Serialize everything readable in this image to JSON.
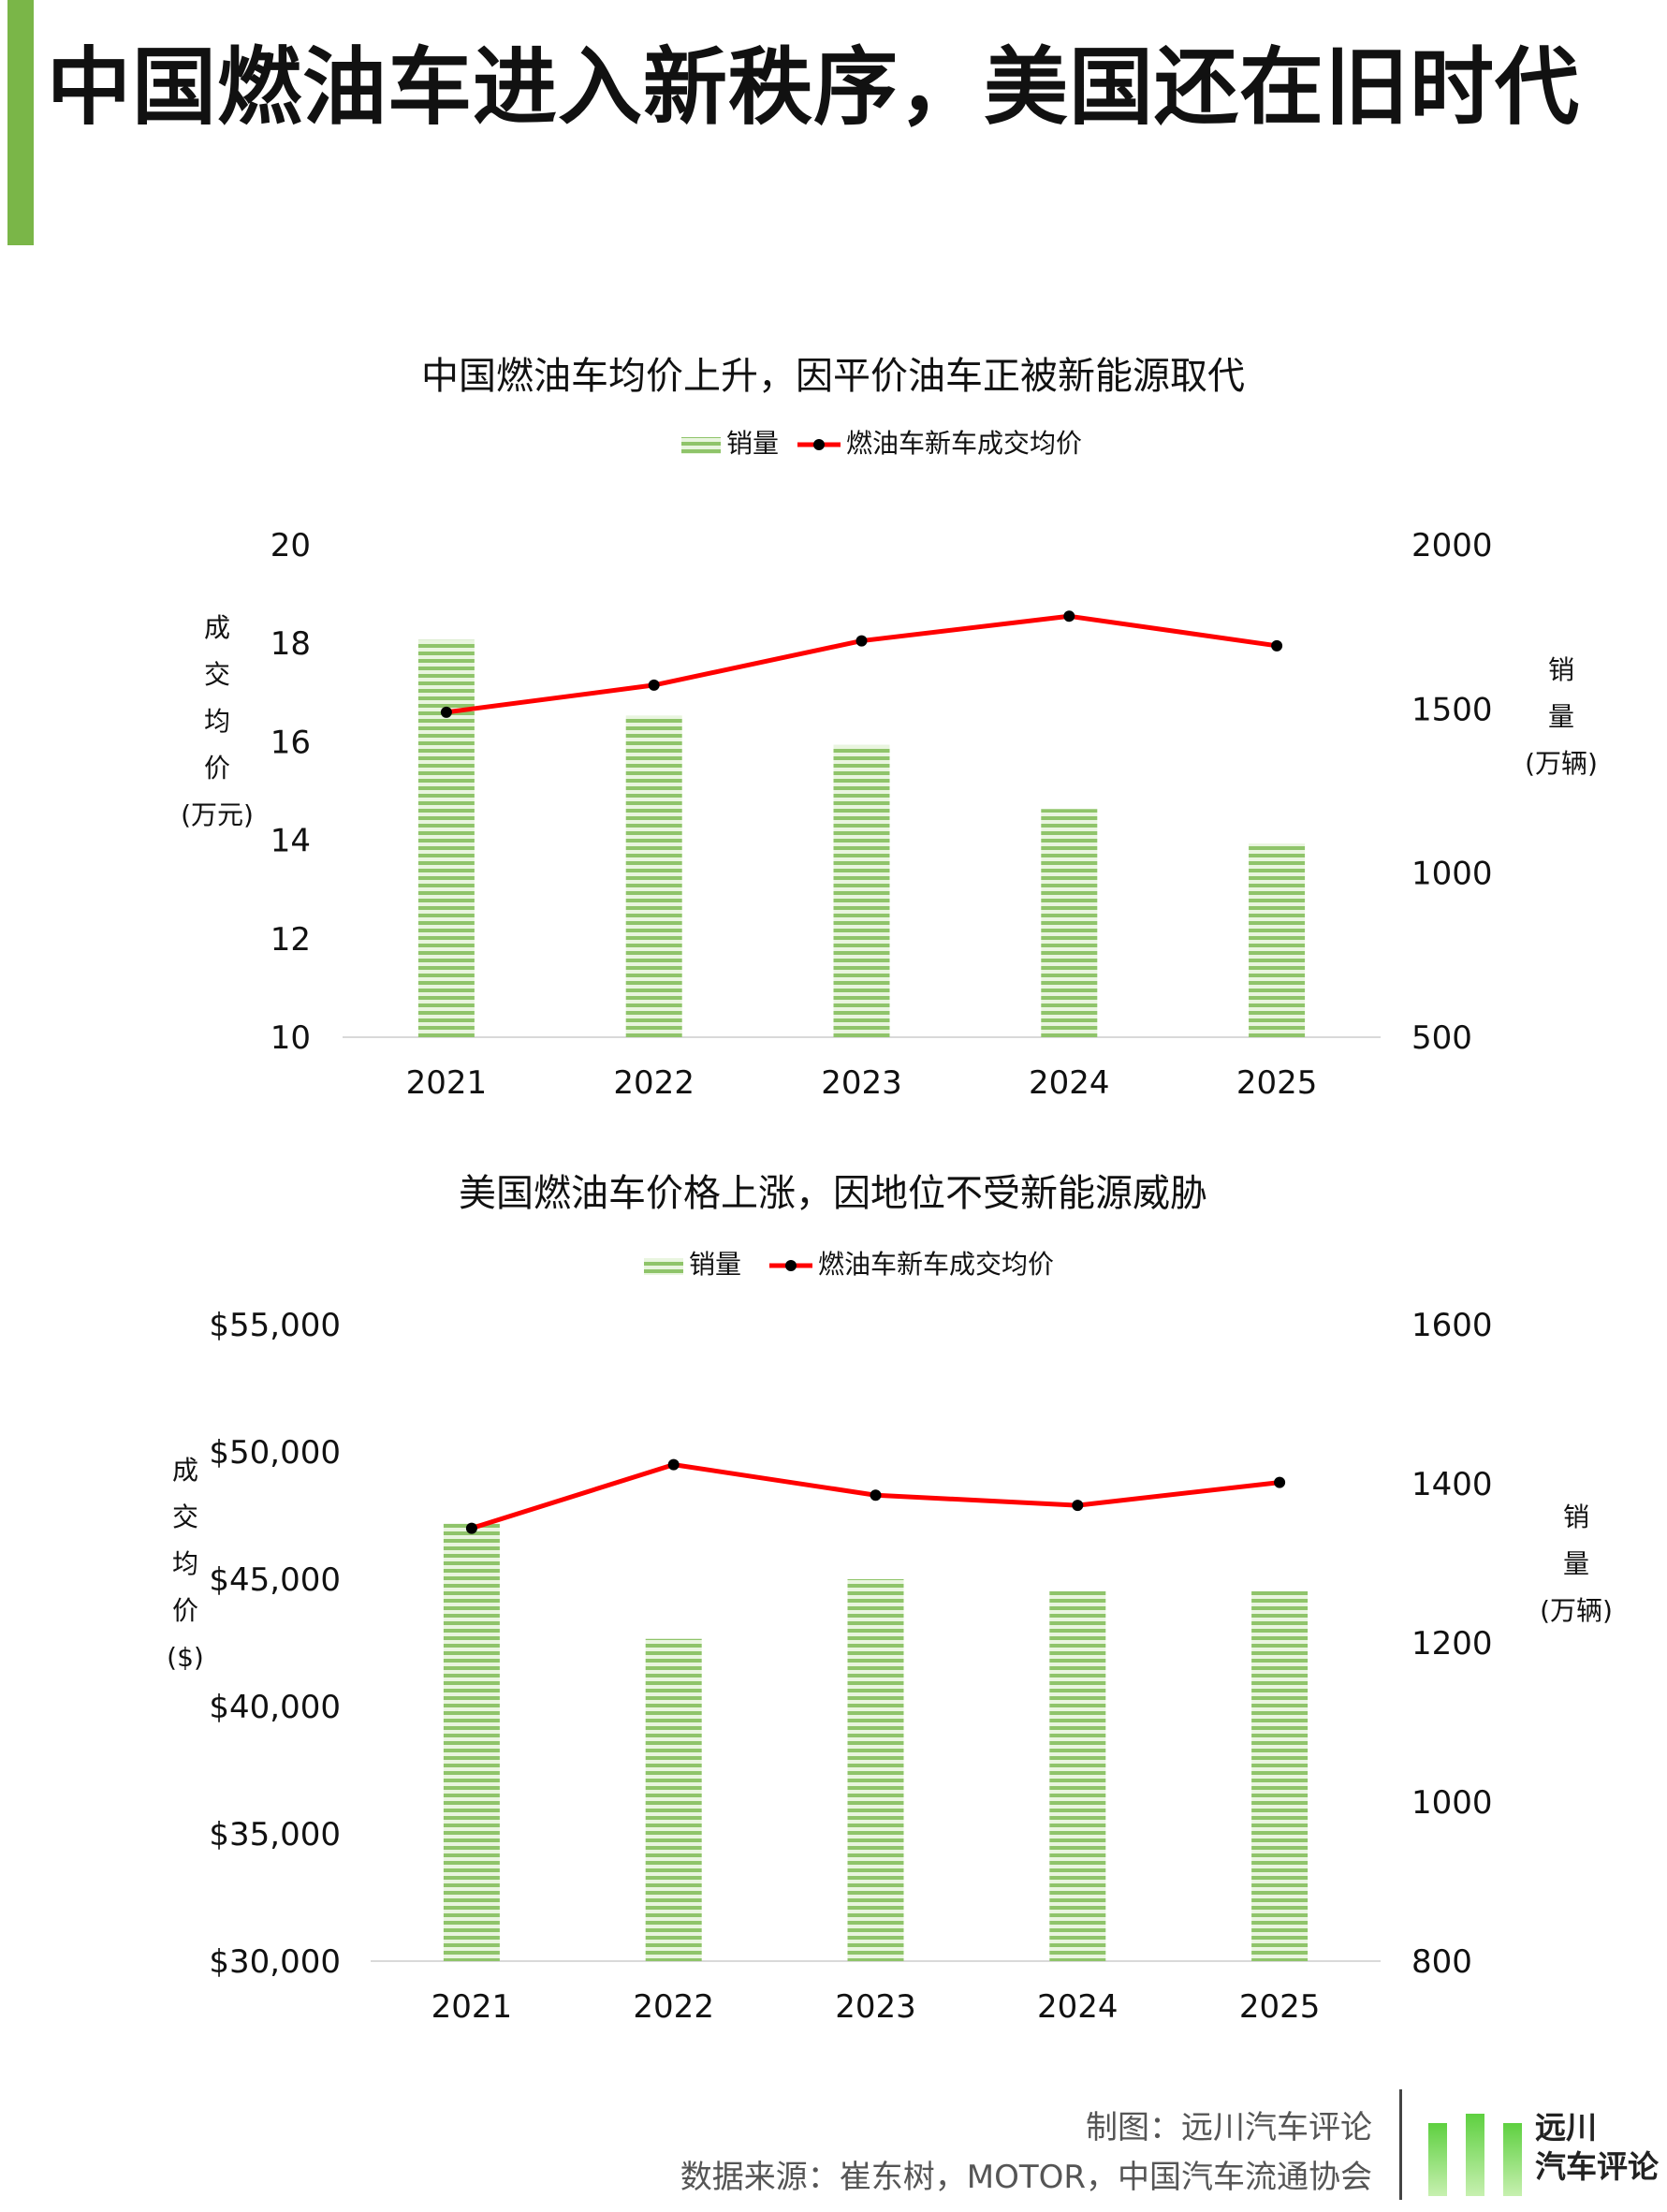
{
  "page": {
    "title": "中国燃油车进入新秩序，美国还在旧时代",
    "credit_chart": "制图：远川汽车评论",
    "credit_source": "数据来源：崔东树，MOTOR，中国汽车流通协会",
    "logo_text_1": "远川",
    "logo_text_2": "汽车评论"
  },
  "colors": {
    "accent": "#7ab648",
    "bar": "#8fc46a",
    "line": "#ff0000",
    "marker": "#000000"
  },
  "chart_data": [
    {
      "type": "bar",
      "title": "中国燃油车均价上升，因平价油车正被新能源取代",
      "legend": {
        "position": "top-center",
        "bar_label": "销量",
        "line_label": "燃油车新车成交均价"
      },
      "categories": [
        "2021",
        "2022",
        "2023",
        "2024",
        "2025"
      ],
      "y_left": {
        "label_chars": [
          "成",
          "交",
          "均",
          "价",
          "(万元)"
        ],
        "ylim": [
          10,
          20
        ],
        "ticks": [
          "10",
          "12",
          "14",
          "16",
          "18",
          "20"
        ]
      },
      "y_right": {
        "label_chars": [
          "销",
          "量",
          "(万辆)"
        ],
        "ylim": [
          500,
          2000
        ],
        "ticks": [
          "500",
          "1000",
          "1500",
          "2000"
        ]
      },
      "series": [
        {
          "name": "销量",
          "type": "bar",
          "axis": "right",
          "values": [
            1710,
            1480,
            1390,
            1195,
            1090
          ]
        },
        {
          "name": "燃油车新车成交均价",
          "type": "line",
          "axis": "left",
          "values": [
            16.6,
            17.15,
            18.05,
            18.55,
            17.95
          ]
        }
      ]
    },
    {
      "type": "bar",
      "title": "美国燃油车价格上涨，因地位不受新能源威胁",
      "legend": {
        "position": "top-center",
        "bar_label": "销量",
        "line_label": "燃油车新车成交均价"
      },
      "categories": [
        "2021",
        "2022",
        "2023",
        "2024",
        "2025"
      ],
      "y_left": {
        "label_chars": [
          "成",
          "交",
          "均",
          "价",
          "($)"
        ],
        "ylim": [
          30000,
          55000
        ],
        "ticks": [
          "$30,000",
          "$35,000",
          "$40,000",
          "$45,000",
          "$50,000",
          "$55,000"
        ]
      },
      "y_right": {
        "label_chars": [
          "销",
          "量",
          "(万辆)"
        ],
        "ylim": [
          800,
          1600
        ],
        "ticks": [
          "800",
          "1000",
          "1200",
          "1400",
          "1600"
        ]
      },
      "series": [
        {
          "name": "销量",
          "type": "bar",
          "axis": "right",
          "values": [
            1350,
            1205,
            1280,
            1265,
            1265
          ]
        },
        {
          "name": "燃油车新车成交均价",
          "type": "line",
          "axis": "left",
          "values": [
            47000,
            49500,
            48300,
            47900,
            48800
          ]
        }
      ]
    }
  ]
}
